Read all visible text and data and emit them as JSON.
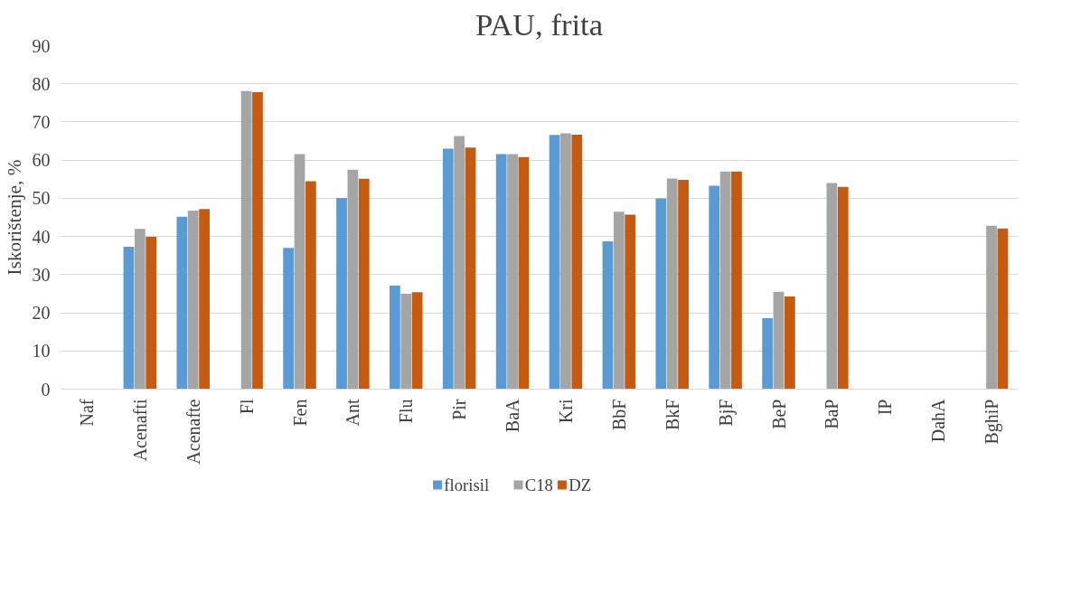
{
  "chart_data": {
    "type": "bar",
    "title": "PAU, frita",
    "ylabel": "Iskorištenje, %",
    "categories": [
      "Naf",
      "Acenafti",
      "Acenafte",
      "Fl",
      "Fen",
      "Ant",
      "Flu",
      "Pir",
      "BaA",
      "Kri",
      "BbF",
      "BkF",
      "BjF",
      "BeP",
      "BaP",
      "IP",
      "DahA",
      "BghiP"
    ],
    "series": [
      {
        "name": "florisil",
        "color": "#5b9bd5",
        "values": [
          null,
          37.3,
          45.2,
          null,
          37.0,
          50.1,
          27.1,
          63.0,
          61.6,
          66.6,
          38.7,
          50.0,
          53.3,
          18.6,
          null,
          null,
          null,
          null
        ]
      },
      {
        "name": "C18",
        "color": "#a5a5a5",
        "values": [
          null,
          42.0,
          46.8,
          78.1,
          61.6,
          57.5,
          25.0,
          66.3,
          61.6,
          67.0,
          46.5,
          55.2,
          57.0,
          25.5,
          54.0,
          null,
          null,
          42.8
        ]
      },
      {
        "name": "DZ",
        "color": "#c55a11",
        "values": [
          null,
          39.9,
          47.2,
          77.8,
          54.5,
          55.1,
          25.4,
          63.3,
          60.8,
          66.7,
          45.7,
          54.8,
          57.0,
          24.3,
          53.0,
          null,
          null,
          42.1
        ]
      }
    ],
    "ylim": [
      0,
      90
    ],
    "yticks": [
      0,
      10,
      20,
      30,
      40,
      50,
      60,
      70,
      80,
      90
    ],
    "grid": "y",
    "legend": "bottom"
  }
}
